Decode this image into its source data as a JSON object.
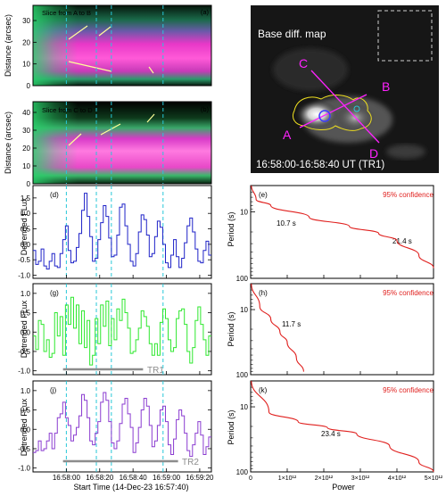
{
  "colors": {
    "blue": "#1e22c8",
    "green": "#2ee82e",
    "purple": "#8a3bd0",
    "red": "#e0201e",
    "cyan": "#28c8d8",
    "magenta": "#ff22ff",
    "yellow": "#f0e020",
    "gray": "#8c8c8c"
  },
  "panels": {
    "a": {
      "tag": "(a)",
      "title": "Slice from A to B",
      "ylabel": "Distance (arcsec)",
      "yticks": [
        "0",
        "10",
        "20",
        "30"
      ]
    },
    "b": {
      "tag": "(b)",
      "title": "Slice from C to D",
      "ylabel": "Distance (arcsec)",
      "yticks": [
        "0",
        "10",
        "20",
        "30",
        "40"
      ]
    },
    "c": {
      "title": "Base diff. map",
      "time": "16:58:00-16:58:40 UT (TR1)",
      "labels": {
        "A": "A",
        "B": "B",
        "C": "C",
        "D": "D"
      }
    },
    "d": {
      "tag": "(d)",
      "ylabel": "Detrended FLux",
      "yticks": [
        "-1.0",
        "-0.5",
        "0.0",
        "0.5",
        "1.0",
        "1.5"
      ]
    },
    "e": {
      "tag": "(e)",
      "conf": "95% confidence",
      "ylabel": "Period (s)",
      "yticks": [
        "10",
        "100"
      ],
      "peaks": [
        "10.7 s",
        "21.4 s"
      ]
    },
    "g": {
      "tag": "(g)",
      "ylabel": "Detrended FLux",
      "yticks": [
        "-1.0",
        "-0.5",
        "0.0",
        "0.5",
        "1.0"
      ],
      "bar": "TR1"
    },
    "h": {
      "tag": "(h)",
      "conf": "95% confidence",
      "ylabel": "Period (s)",
      "yticks": [
        "10",
        "100"
      ],
      "peaks": [
        "11.7 s"
      ]
    },
    "j": {
      "tag": "(j)",
      "ylabel": "Detrended FLux",
      "yticks": [
        "-1.0",
        "-0.5",
        "0.0",
        "0.5",
        "1.0"
      ],
      "bar": "TR2"
    },
    "k": {
      "tag": "(k)",
      "conf": "95% confidence",
      "ylabel": "Period (s)",
      "yticks": [
        "10",
        "100"
      ],
      "peaks": [
        "23.4 s"
      ]
    }
  },
  "xaxis": {
    "ticks": [
      "16:58:00",
      "16:58:20",
      "16:58:40",
      "16:59:00",
      "16:59:20"
    ],
    "label": "Start Time (14-Dec-23 16:57:40)"
  },
  "power_axis": {
    "ticks": [
      "0",
      "1×10¹²",
      "2×10¹²",
      "3×10¹²",
      "4×10¹²",
      "5×10¹²"
    ],
    "label": "Power"
  },
  "chart_data": [
    {
      "type": "line",
      "panel": "d",
      "x_start": "16:57:40",
      "x_end": "16:59:27",
      "x_ticks": [
        "16:58:00",
        "16:58:20",
        "16:58:40",
        "16:59:00",
        "16:59:20"
      ],
      "ylim": [
        -1.1,
        1.9
      ],
      "ylabel": "Detrended FLux",
      "series": [
        {
          "color": "blue",
          "values": [
            -0.2,
            -0.65,
            -0.55,
            -0.15,
            -0.7,
            -0.8,
            -0.55,
            -0.3,
            -0.7,
            -0.75,
            -0.3,
            0.15,
            0.6,
            -0.2,
            -0.6,
            -0.55,
            -0.1,
            0.35,
            1.1,
            1.65,
            0.9,
            0.25,
            -0.55,
            -0.45,
            0.15,
            0.7,
            1.25,
            0.9,
            0.2,
            -0.4,
            -0.35,
            0.3,
            1.2,
            1.3,
            0.6,
            0.0,
            -0.55,
            -0.7,
            -0.3,
            0.4,
            0.95,
            0.8,
            0.3,
            -0.4,
            -0.3,
            0.25,
            0.75,
            0.55,
            0.0,
            -0.6,
            -0.75,
            -0.35,
            0.15,
            -0.4,
            -0.75,
            -0.45,
            0.05,
            0.6,
            0.85,
            0.4,
            -0.15,
            -0.55,
            -0.6,
            -0.2,
            0.1,
            -0.35
          ]
        }
      ]
    },
    {
      "type": "line",
      "panel": "e",
      "xlim": [
        0,
        5000000000000.0
      ],
      "ylim": [
        100,
        4
      ],
      "yscale": "log",
      "x_ticks": [
        "0",
        "1×10¹²",
        "2×10¹²",
        "3×10¹²",
        "4×10¹²",
        "5×10¹²"
      ],
      "ylabel": "Period (s)",
      "xlabel": "Power",
      "series": [
        {
          "color": "black",
          "points": [
            [
              20000000000.0,
              4
            ],
            [
              200000000000.0,
              7
            ],
            [
              900000000000.0,
              10.7
            ],
            [
              300000000000.0,
              13.5
            ],
            [
              1200000000000.0,
              17.5
            ],
            [
              4100000000000.0,
              21.4
            ],
            [
              1000000000000.0,
              27
            ],
            [
              150000000000.0,
              34
            ],
            [
              300000000000.0,
              42
            ],
            [
              100000000000.0,
              55
            ],
            [
              800000000000.0,
              68
            ],
            [
              900000000000.0,
              80
            ],
            [
              200000000000.0,
              92
            ],
            [
              100000000000.0,
              100
            ]
          ]
        },
        {
          "color": "red",
          "points": [
            [
              20000000000.0,
              4
            ],
            [
              150000000000.0,
              6.5
            ],
            [
              550000000000.0,
              8
            ],
            [
              1600000000000.0,
              12
            ],
            [
              2700000000000.0,
              16.5
            ],
            [
              3500000000000.0,
              21
            ],
            [
              4000000000000.0,
              27
            ],
            [
              4600000000000.0,
              45
            ],
            [
              5000000000000.0,
              70
            ]
          ]
        }
      ]
    },
    {
      "type": "line",
      "panel": "g",
      "x_start": "16:57:40",
      "x_end": "16:59:27",
      "x_ticks": [
        "16:58:00",
        "16:58:20",
        "16:58:40",
        "16:59:00",
        "16:59:20"
      ],
      "ylim": [
        -1.1,
        1.25
      ],
      "ylabel": "Detrended FLux",
      "series": [
        {
          "color": "green",
          "values": [
            -0.1,
            -0.45,
            0.3,
            0.2,
            -0.5,
            -0.2,
            -0.65,
            -0.55,
            0.5,
            -0.1,
            0.4,
            -0.6,
            0.7,
            0.2,
            0.9,
            0.1,
            0.7,
            -0.3,
            0.55,
            -0.4,
            0.3,
            -0.85,
            -0.6,
            0.35,
            -0.3,
            0.7,
            0.15,
            0.8,
            -0.35,
            0.35,
            -0.2,
            0.6,
            0.3,
            0.85,
            0.5,
            0.1,
            -0.55,
            -0.5,
            -0.2,
            0.1,
            0.55,
            0.4,
            0.15,
            -0.3,
            -0.6,
            -0.3,
            -0.6,
            0.25,
            0.6,
            0.35,
            -0.2,
            -0.5,
            -0.4,
            0.35,
            0.55,
            0.6,
            0.2,
            -0.5,
            -0.8,
            -0.4,
            0.3,
            0.65,
            0.2,
            -0.2,
            -0.6,
            -0.1
          ]
        }
      ]
    },
    {
      "type": "line",
      "panel": "h",
      "xlim": [
        0,
        5000000000000.0
      ],
      "ylim": [
        100,
        4
      ],
      "yscale": "log",
      "series": [
        {
          "color": "black",
          "points": [
            [
              20000000000.0,
              4
            ],
            [
              350000000000.0,
              8.5
            ],
            [
              750000000000.0,
              11.7
            ],
            [
              350000000000.0,
              15
            ],
            [
              50000000000.0,
              20
            ],
            [
              450000000000.0,
              30
            ],
            [
              50000000000.0,
              40
            ],
            [
              200000000000.0,
              55
            ],
            [
              400000000000.0,
              65
            ],
            [
              800000000000.0,
              80
            ],
            [
              300000000000.0,
              92
            ],
            [
              50000000000.0,
              100
            ]
          ]
        },
        {
          "color": "red",
          "points": [
            [
              20000000000.0,
              4
            ],
            [
              250000000000.0,
              9
            ],
            [
              550000000000.0,
              14
            ],
            [
              800000000000.0,
              22
            ],
            [
              1000000000000.0,
              32
            ],
            [
              1250000000000.0,
              55
            ],
            [
              1450000000000.0,
              90
            ]
          ]
        }
      ]
    },
    {
      "type": "line",
      "panel": "j",
      "x_start": "16:57:40",
      "x_end": "16:59:27",
      "x_ticks": [
        "16:58:00",
        "16:58:20",
        "16:58:40",
        "16:59:00",
        "16:59:20"
      ],
      "ylim": [
        -1.1,
        1.25
      ],
      "ylabel": "Detrended FLux",
      "series": [
        {
          "color": "purple",
          "values": [
            -0.6,
            -0.55,
            -0.3,
            -0.55,
            -0.5,
            -0.3,
            -0.1,
            -0.5,
            -0.1,
            0.3,
            0.4,
            0.7,
            0.3,
            0.1,
            -0.3,
            -0.15,
            0.05,
            0.35,
            0.9,
            0.75,
            0.3,
            -0.3,
            -0.4,
            -0.1,
            0.2,
            0.7,
            0.95,
            0.75,
            0.2,
            -0.35,
            -0.5,
            -0.3,
            0.15,
            0.65,
            0.8,
            0.4,
            0.05,
            -0.6,
            -0.35,
            0.05,
            0.5,
            0.8,
            0.6,
            0.1,
            -0.45,
            -0.3,
            0.1,
            0.5,
            0.6,
            0.2,
            -0.4,
            -0.65,
            -0.25,
            0.25,
            0.5,
            0.35,
            -0.1,
            -0.55,
            -0.7,
            -0.4,
            -0.1,
            0.2,
            -0.15,
            -0.65,
            -0.45,
            -0.2
          ]
        }
      ]
    },
    {
      "type": "line",
      "panel": "k",
      "xlim": [
        0,
        5000000000000.0
      ],
      "ylim": [
        100,
        4
      ],
      "yscale": "log",
      "series": [
        {
          "color": "black",
          "points": [
            [
              20000000000.0,
              4
            ],
            [
              300000000000.0,
              10
            ],
            [
              900000000000.0,
              16
            ],
            [
              2500000000000.0,
              23.4
            ],
            [
              700000000000.0,
              32
            ],
            [
              80000000000.0,
              42
            ],
            [
              500000000000.0,
              58
            ],
            [
              1600000000000.0,
              75
            ],
            [
              500000000000.0,
              92
            ],
            [
              50000000000.0,
              100
            ]
          ]
        },
        {
          "color": "red",
          "points": [
            [
              20000000000.0,
              4
            ],
            [
              500000000000.0,
              12
            ],
            [
              1300000000000.0,
              17
            ],
            [
              2100000000000.0,
              21
            ],
            [
              2900000000000.0,
              26
            ],
            [
              3800000000000.0,
              40
            ],
            [
              4600000000000.0,
              70
            ],
            [
              5000000000000.0,
              100
            ]
          ]
        }
      ]
    }
  ]
}
